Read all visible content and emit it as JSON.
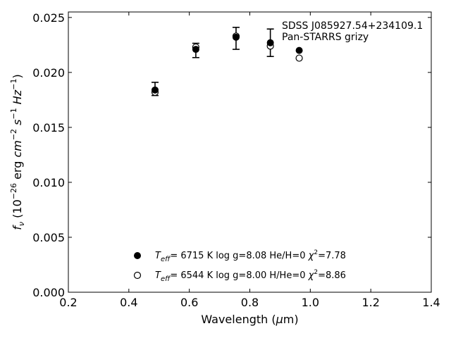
{
  "chart_data": {
    "type": "scatter",
    "annotations": [
      "SDSS J085927.54+234109.1",
      "Pan-STARRS grizy"
    ],
    "xlabel": {
      "prefix": "Wavelength (",
      "symbol": "μ",
      "suffix": "m)"
    },
    "ylabel": {
      "f": "f",
      "nu": "ν",
      "open": " (10",
      "exp1": "−26",
      "mid": " erg ",
      "cm": "cm",
      "exp2": "−2",
      "s": "s",
      "exp3": "−1",
      "hz": "Hz",
      "exp4": "−1",
      "close": ")"
    },
    "xlim": [
      0.2,
      1.4
    ],
    "ylim": [
      0.0,
      0.0255
    ],
    "xticks": [
      0.2,
      0.4,
      0.6,
      0.8,
      1.0,
      1.2,
      1.4
    ],
    "xtick_labels": [
      "0.2",
      "0.4",
      "0.6",
      "0.8",
      "1.0",
      "1.2",
      "1.4"
    ],
    "yticks": [
      0.0,
      0.005,
      0.01,
      0.015,
      0.02,
      0.025
    ],
    "ytick_labels": [
      "0.000",
      "0.005",
      "0.010",
      "0.015",
      "0.020",
      "0.025"
    ],
    "grid": false,
    "legend_position": "lower-center",
    "series": [
      {
        "marker": "filled-circle",
        "legend": {
          "T": "T",
          "sub": "eff",
          "rest": "=  6715 K  log g=8.08  He/H=0  ",
          "chi": "χ",
          "sup": "2",
          "end": "=7.78"
        },
        "x": [
          0.4866,
          0.6215,
          0.7545,
          0.8679,
          0.9633
        ],
        "y": [
          0.0184,
          0.0221,
          0.0232,
          0.0227,
          0.022
        ]
      },
      {
        "marker": "open-circle",
        "legend": {
          "T": "T",
          "sub": "eff",
          "rest": "=  6544 K  log g=8.00  H/He=0  ",
          "chi": "χ",
          "sup": "2",
          "end": "=8.86"
        },
        "x": [
          0.4866,
          0.6215,
          0.7545,
          0.8679,
          0.9633
        ],
        "y": [
          0.0182,
          0.0223,
          0.0233,
          0.0224,
          0.0213
        ]
      }
    ],
    "errorbars": {
      "x": [
        0.4866,
        0.6215,
        0.7545,
        0.8679
      ],
      "y": [
        0.0185,
        0.022,
        0.0231,
        0.0227
      ],
      "yerr": [
        0.0006,
        0.00065,
        0.001,
        0.00125
      ]
    }
  }
}
